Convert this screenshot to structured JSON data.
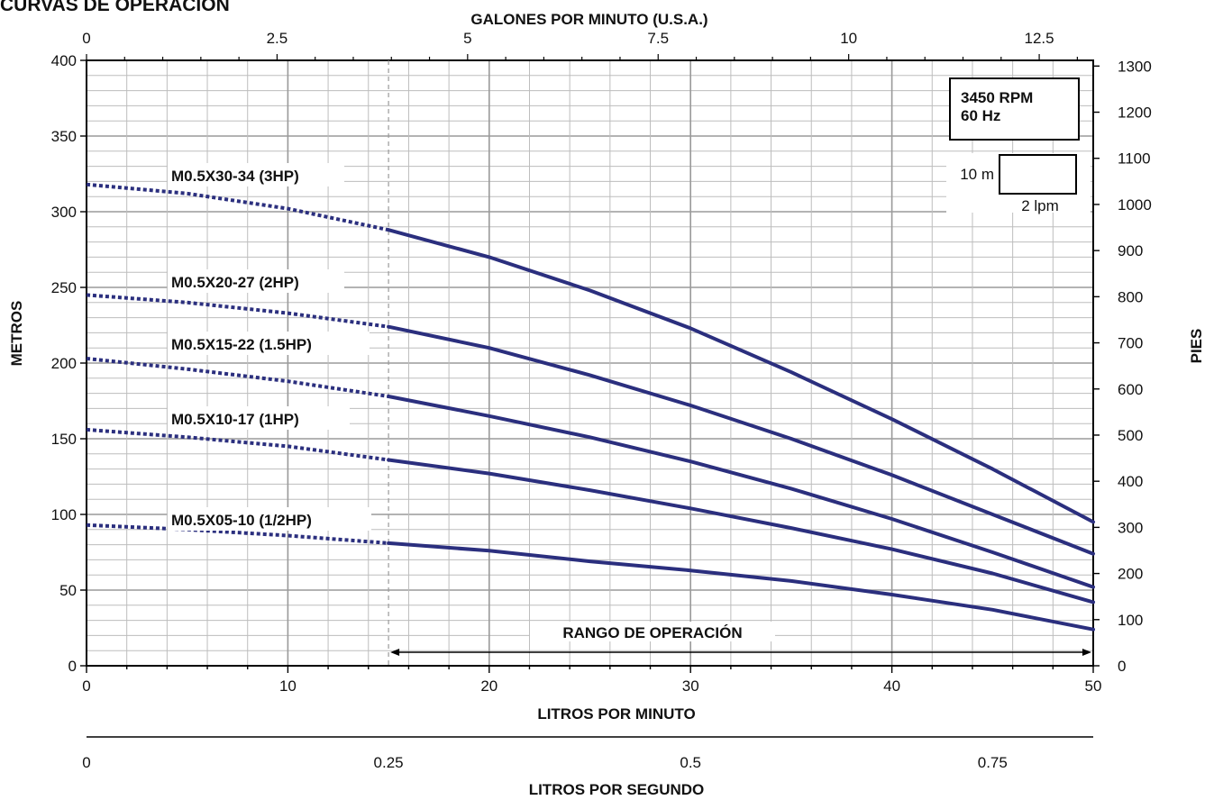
{
  "title": "CURVAS DE OPERACIÓN",
  "colors": {
    "curve": "#2b2f7e",
    "grid_major": "#9a9a9a",
    "grid_minor": "#bdbdbd",
    "axis": "#000000"
  },
  "chart_data": {
    "type": "line",
    "xlabel": "LITROS POR MINUTO",
    "ylabel": "METROS",
    "top_axis_label": "GALONES POR MINUTO (U.S.A.)",
    "right_axis_label": "PIES",
    "bottom2_axis_label": "LITROS POR SEGUNDO",
    "xlim": [
      0,
      50
    ],
    "ylim": [
      0,
      400
    ],
    "x_ticks": [
      "0",
      "10",
      "20",
      "30",
      "40",
      "50"
    ],
    "y_ticks": [
      "0",
      "50",
      "100",
      "150",
      "200",
      "250",
      "300",
      "350",
      "400"
    ],
    "top_ticks": [
      "0",
      "2.5",
      "5",
      "7.5",
      "10",
      "12.5"
    ],
    "right_ticks": [
      "0",
      "100",
      "200",
      "300",
      "400",
      "500",
      "600",
      "700",
      "800",
      "900",
      "1000",
      "1100",
      "1200",
      "1300"
    ],
    "lps_ticks": [
      "0",
      "0.25",
      "0.5",
      "0.75"
    ],
    "grid": true,
    "info_box": {
      "rpm": "3450 RPM",
      "hz": "60 Hz"
    },
    "scale_box": {
      "vertical": "10 m",
      "horizontal": "2 lpm"
    },
    "operating_range": {
      "label": "RANGO DE OPERACIÓN",
      "from": 15,
      "to": 50
    },
    "series": [
      {
        "name": "M0.5X30-34 (3HP)",
        "x": [
          0,
          5,
          10,
          15,
          20,
          25,
          30,
          35,
          40,
          45,
          50
        ],
        "y": [
          318,
          312,
          302,
          288,
          270,
          248,
          223,
          194,
          163,
          130,
          95
        ]
      },
      {
        "name": "M0.5X20-27 (2HP)",
        "x": [
          0,
          5,
          10,
          15,
          20,
          25,
          30,
          35,
          40,
          45,
          50
        ],
        "y": [
          245,
          240,
          233,
          224,
          210,
          192,
          172,
          150,
          126,
          100,
          74
        ]
      },
      {
        "name": "M0.5X15-22 (1.5HP)",
        "x": [
          0,
          5,
          10,
          15,
          20,
          25,
          30,
          35,
          40,
          45,
          50
        ],
        "y": [
          203,
          196,
          188,
          178,
          165,
          151,
          135,
          117,
          97,
          75,
          52
        ]
      },
      {
        "name": "M0.5X10-17 (1HP)",
        "x": [
          0,
          5,
          10,
          15,
          20,
          25,
          30,
          35,
          40,
          45,
          50
        ],
        "y": [
          156,
          151,
          145,
          136,
          127,
          116,
          104,
          91,
          77,
          61,
          42
        ]
      },
      {
        "name": "M0.5X05-10 (1/2HP)",
        "x": [
          0,
          5,
          10,
          15,
          20,
          25,
          30,
          35,
          40,
          45,
          50
        ],
        "y": [
          93,
          90,
          86,
          81,
          76,
          69,
          63,
          56,
          47,
          37,
          24
        ]
      }
    ]
  }
}
